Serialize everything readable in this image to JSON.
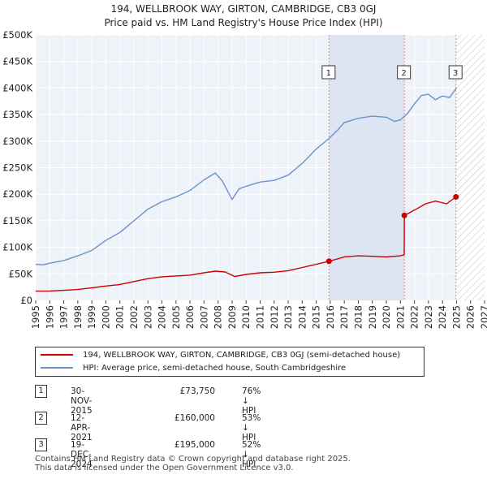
{
  "chart_data": {
    "type": "line",
    "title": "194, WELLBROOK WAY, GIRTON, CAMBRIDGE, CB3 0GJ",
    "subtitle": "Price paid vs. HM Land Registry's House Price Index (HPI)",
    "xlabel": "",
    "ylabel": "",
    "xlim": [
      1995,
      2027
    ],
    "ylim": [
      0,
      500000
    ],
    "x_ticks": [
      "1995",
      "1996",
      "1997",
      "1998",
      "1999",
      "2000",
      "2001",
      "2002",
      "2003",
      "2004",
      "2005",
      "2006",
      "2007",
      "2008",
      "2009",
      "2010",
      "2011",
      "2012",
      "2013",
      "2014",
      "2015",
      "2016",
      "2017",
      "2018",
      "2019",
      "2020",
      "2021",
      "2022",
      "2023",
      "2024",
      "2025",
      "2026",
      "2027"
    ],
    "y_ticks": [
      {
        "value": 0,
        "label": "£0"
      },
      {
        "value": 50000,
        "label": "£50K"
      },
      {
        "value": 100000,
        "label": "£100K"
      },
      {
        "value": 150000,
        "label": "£150K"
      },
      {
        "value": 200000,
        "label": "£200K"
      },
      {
        "value": 250000,
        "label": "£250K"
      },
      {
        "value": 300000,
        "label": "£300K"
      },
      {
        "value": 350000,
        "label": "£350K"
      },
      {
        "value": 400000,
        "label": "£400K"
      },
      {
        "value": 450000,
        "label": "£450K"
      },
      {
        "value": 500000,
        "label": "£500K"
      }
    ],
    "grid": true,
    "future_from": 2025.0,
    "series": [
      {
        "name": "194, WELLBROOK WAY, GIRTON, CAMBRIDGE, CB3 0GJ (semi-detached house)",
        "color": "#cc0000",
        "x": [
          1995,
          1996,
          1997,
          1998,
          1999,
          2000,
          2001,
          2002,
          2003,
          2004,
          2005,
          2006,
          2007,
          2007.8,
          2008.5,
          2009.2,
          2010,
          2011,
          2012,
          2013,
          2014,
          2015,
          2015.91,
          2016.5,
          2017,
          2018,
          2019,
          2020,
          2021.0,
          2021.27,
          2021.28,
          2022,
          2022.8,
          2023.5,
          2024.3,
          2024.96,
          2025.0
        ],
        "y": [
          17500,
          17800,
          19000,
          20500,
          23500,
          27000,
          30000,
          35500,
          41000,
          44500,
          46000,
          47500,
          52000,
          55000,
          53500,
          45000,
          49000,
          52000,
          53000,
          56000,
          62000,
          68000,
          73750,
          78000,
          82000,
          84000,
          83000,
          82000,
          84000,
          86000,
          160000,
          170000,
          182000,
          187000,
          182000,
          195000,
          195000
        ]
      },
      {
        "name": "HPI: Average price, semi-detached house, South Cambridgeshire",
        "color": "#6b93c9",
        "x": [
          1995,
          1995.5,
          1996,
          1997,
          1998,
          1999,
          2000,
          2001,
          2002,
          2003,
          2004,
          2005,
          2006,
          2007,
          2007.8,
          2008.3,
          2009.0,
          2009.5,
          2010,
          2011,
          2012,
          2013,
          2014,
          2015,
          2015.91,
          2016.5,
          2017,
          2018,
          2019,
          2020,
          2020.6,
          2021,
          2021.5,
          2022,
          2022.5,
          2023,
          2023.5,
          2024,
          2024.5,
          2025
        ],
        "y": [
          68000,
          67000,
          70000,
          75000,
          84000,
          94000,
          113000,
          128000,
          150000,
          172000,
          186000,
          195000,
          207000,
          227000,
          240000,
          225000,
          190000,
          210000,
          215000,
          223000,
          226000,
          236000,
          258000,
          285000,
          305000,
          320000,
          335000,
          343000,
          347000,
          345000,
          337000,
          340000,
          352000,
          370000,
          386000,
          388000,
          378000,
          385000,
          382000,
          400000
        ]
      }
    ],
    "sales": [
      {
        "label": "1",
        "x": 2015.91,
        "y": 73750
      },
      {
        "label": "2",
        "x": 2021.28,
        "y": 160000
      },
      {
        "label": "3",
        "x": 2024.96,
        "y": 195000
      }
    ]
  },
  "legend": [
    {
      "label": "194, WELLBROOK WAY, GIRTON, CAMBRIDGE, CB3 0GJ (semi-detached house)",
      "color": "#cc0000"
    },
    {
      "label": "HPI: Average price, semi-detached house, South Cambridgeshire",
      "color": "#6b93c9"
    }
  ],
  "sales_table": [
    {
      "num": "1",
      "date": "30-NOV-2015",
      "price": "£73,750",
      "hpi": "76% ↓ HPI"
    },
    {
      "num": "2",
      "date": "12-APR-2021",
      "price": "£160,000",
      "hpi": "53% ↓ HPI"
    },
    {
      "num": "3",
      "date": "19-DEC-2024",
      "price": "£195,000",
      "hpi": "52% ↓ HPI"
    }
  ],
  "footer": {
    "line1": "Contains HM Land Registry data © Crown copyright and database right 2025.",
    "line2": "This data is licensed under the Open Government Licence v3.0."
  },
  "colors": {
    "plot_bg": "#eef2f9",
    "grid": "#ffffff",
    "sale_band": "#dde5f3",
    "vline": "#ee8888"
  }
}
